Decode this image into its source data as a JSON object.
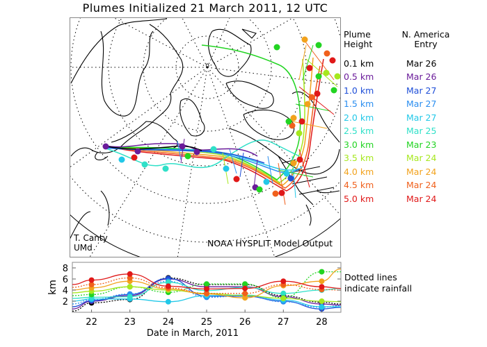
{
  "title": "Plumes Initialized 21 March 2011, 12 UTC",
  "legend": {
    "col1_header": [
      "Plume",
      "Height"
    ],
    "col2_header": [
      "N. America",
      "Entry"
    ],
    "rows": [
      {
        "height": "0.1 km",
        "entry": "Mar 26",
        "color": "#000000"
      },
      {
        "height": "0.5 km",
        "entry": "Mar 26",
        "color": "#6a1b9a"
      },
      {
        "height": "1.0 km",
        "entry": "Mar 27",
        "color": "#1f4fd8"
      },
      {
        "height": "1.5 km",
        "entry": "Mar 27",
        "color": "#2a8ef0"
      },
      {
        "height": "2.0 km",
        "entry": "Mar 27",
        "color": "#22c8e8"
      },
      {
        "height": "2.5 km",
        "entry": "Mar 25",
        "color": "#2fe0c8"
      },
      {
        "height": "3.0 km",
        "entry": "Mar 23",
        "color": "#22d422"
      },
      {
        "height": "3.5 km",
        "entry": "Mar 24",
        "color": "#a6e81e"
      },
      {
        "height": "4.0 km",
        "entry": "Mar 24",
        "color": "#f2a21c"
      },
      {
        "height": "4.5 km",
        "entry": "Mar 24",
        "color": "#f0601c"
      },
      {
        "height": "5.0 km",
        "entry": "Mar 24",
        "color": "#e01818"
      }
    ]
  },
  "map": {
    "credit_line1": "T. Canty",
    "credit_line2": "UMd",
    "source": "NOAA HYSPLIT Model Output"
  },
  "note": [
    "Dotted lines",
    "indicate rainfall"
  ],
  "chart_data": {
    "type": "line",
    "title": "Plumes Initialized 21 March 2011, 12 UTC",
    "xlabel": "Date in March, 2011",
    "ylabel": "km",
    "xlim": [
      21.5,
      28.5
    ],
    "ylim": [
      0,
      9
    ],
    "xticks": [
      "22",
      "23",
      "24",
      "25",
      "26",
      "27",
      "28"
    ],
    "yticks": [
      "2",
      "4",
      "6",
      "8"
    ],
    "x": [
      21.5,
      22,
      23,
      24,
      25,
      26,
      27,
      28,
      28.5
    ],
    "series": [
      {
        "name": "0.1 km",
        "values": [
          0.2,
          1.7,
          2.3,
          6.2,
          5.0,
          5.0,
          3.0,
          1.8,
          1.5
        ]
      },
      {
        "name": "0.5 km",
        "values": [
          0.6,
          2.0,
          3.0,
          6.0,
          4.6,
          4.6,
          2.8,
          1.5,
          1.3
        ]
      },
      {
        "name": "1.0 km",
        "values": [
          1.0,
          2.1,
          3.2,
          6.1,
          2.9,
          2.9,
          2.0,
          0.6,
          0.9
        ]
      },
      {
        "name": "1.5 km",
        "values": [
          1.5,
          2.3,
          3.3,
          5.6,
          2.7,
          3.0,
          1.9,
          0.9,
          1.2
        ]
      },
      {
        "name": "2.0 km",
        "values": [
          2.0,
          2.4,
          2.4,
          1.9,
          3.0,
          3.1,
          2.2,
          1.0,
          1.0
        ]
      },
      {
        "name": "2.5 km",
        "values": [
          2.5,
          2.7,
          2.8,
          5.4,
          3.9,
          4.5,
          3.4,
          4.0,
          4.3
        ]
      },
      {
        "name": "3.0 km",
        "values": [
          3.0,
          3.2,
          4.6,
          3.6,
          5.1,
          5.1,
          2.6,
          7.3,
          7.3
        ]
      },
      {
        "name": "3.5 km",
        "values": [
          3.5,
          3.8,
          4.6,
          4.0,
          3.4,
          3.0,
          2.5,
          2.0,
          1.9
        ]
      },
      {
        "name": "4.0 km",
        "values": [
          4.0,
          4.4,
          5.6,
          4.2,
          3.3,
          2.6,
          4.8,
          5.6,
          7.8
        ]
      },
      {
        "name": "4.5 km",
        "values": [
          4.5,
          5.0,
          6.2,
          4.4,
          3.4,
          3.4,
          5.0,
          4.1,
          4.0
        ]
      },
      {
        "name": "5.0 km",
        "values": [
          5.0,
          5.8,
          6.9,
          4.7,
          4.2,
          4.3,
          5.6,
          4.6,
          4.3
        ]
      }
    ]
  }
}
